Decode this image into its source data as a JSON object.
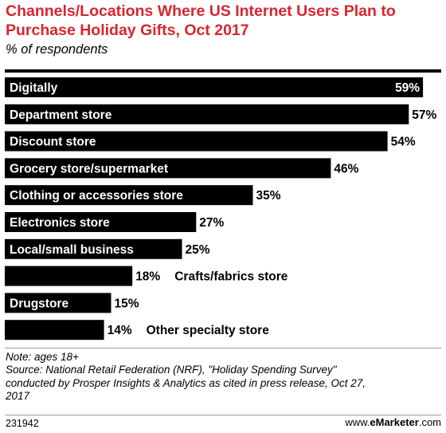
{
  "header": {
    "title": "Channels/Locations Where US Internet Users Plan to Purchase Holiday Gifts, Oct 2017",
    "subtitle": "% of respondents"
  },
  "chart_data": {
    "type": "bar",
    "orientation": "horizontal",
    "categories": [
      "Digitally",
      "Department store",
      "Discount store",
      "Grocery store/supermarket",
      "Clothing or accessories store",
      "Electronics store",
      "Local/small business",
      "Crafts/fabrics store",
      "Drugstore",
      "Other specialty store"
    ],
    "values": [
      59,
      57,
      54,
      46,
      35,
      27,
      25,
      18,
      15,
      14
    ],
    "value_labels": [
      "59%",
      "57%",
      "54%",
      "46%",
      "35%",
      "27%",
      "25%",
      "18%",
      "15%",
      "14%"
    ],
    "unit": "%",
    "xlim": [
      0,
      60
    ],
    "grid": false,
    "legend": "none",
    "bar_color": "#000000"
  },
  "footer": {
    "note_lines": [
      "Note: ages 18+",
      "Source: National Retail Federation (NRF), \"Holiday Spending Survey\"",
      "conducted by Prosper Insights & Analytics as cited in press release, Oct 27,",
      "2017"
    ],
    "chart_id": "231942",
    "brand_prefix": "www.",
    "brand_name": "eMarketer",
    "brand_suffix": ".com"
  }
}
